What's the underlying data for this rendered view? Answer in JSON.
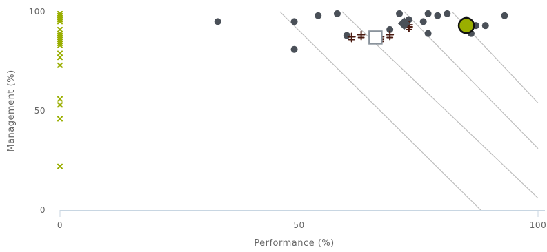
{
  "chart_data": {
    "type": "scatter",
    "xlabel": "Performance (%)",
    "ylabel": "Management (%)",
    "xlim": [
      0,
      100
    ],
    "ylim": [
      0,
      100
    ],
    "x_ticks": [
      0,
      50,
      100
    ],
    "y_ticks": [
      0,
      50,
      100
    ],
    "grid": false,
    "reference_lines": [
      {
        "from": [
          46,
          100
        ],
        "to": [
          88,
          0
        ]
      },
      {
        "from": [
          59,
          100
        ],
        "to": [
          100,
          6
        ]
      },
      {
        "from": [
          72,
          100
        ],
        "to": [
          100,
          31
        ]
      },
      {
        "from": [
          82,
          100
        ],
        "to": [
          100,
          54
        ]
      }
    ],
    "series": [
      {
        "marker": "circle",
        "color": "#4a5058",
        "points": [
          [
            33,
            95
          ],
          [
            49,
            95
          ],
          [
            49,
            81
          ],
          [
            54,
            98
          ],
          [
            58,
            99
          ],
          [
            60,
            88
          ],
          [
            69,
            91
          ],
          [
            71,
            99
          ],
          [
            73,
            96
          ],
          [
            76,
            95
          ],
          [
            77,
            99
          ],
          [
            77,
            89
          ],
          [
            79,
            98
          ],
          [
            81,
            99
          ],
          [
            85,
            96
          ],
          [
            86,
            89
          ],
          [
            87,
            93
          ],
          [
            89,
            93
          ],
          [
            93,
            98
          ]
        ]
      },
      {
        "marker": "x",
        "color": "#9aae00",
        "points": [
          [
            0,
            99
          ],
          [
            0,
            98
          ],
          [
            0,
            97
          ],
          [
            0,
            96
          ],
          [
            0,
            95
          ],
          [
            0,
            91
          ],
          [
            0,
            89
          ],
          [
            0,
            88
          ],
          [
            0,
            87
          ],
          [
            0,
            86
          ],
          [
            0,
            85
          ],
          [
            0,
            84
          ],
          [
            0,
            83
          ],
          [
            0,
            79
          ],
          [
            0,
            77
          ],
          [
            0,
            73
          ],
          [
            0,
            56
          ],
          [
            0,
            53
          ],
          [
            0,
            46
          ],
          [
            0,
            22
          ]
        ]
      },
      {
        "marker": "dagger",
        "color": "#4a1a10",
        "points": [
          [
            61,
            87
          ],
          [
            63,
            88
          ],
          [
            67,
            86
          ],
          [
            67,
            87
          ],
          [
            69,
            88
          ],
          [
            73,
            93
          ],
          [
            73,
            92
          ]
        ]
      },
      {
        "marker": "diamond",
        "color": "#4a5058",
        "points": [
          [
            72,
            94
          ]
        ]
      },
      {
        "marker": "square",
        "color": "#8a939c",
        "points": [
          [
            66,
            87
          ]
        ]
      },
      {
        "marker": "big-circle",
        "color": "#9aae00",
        "points": [
          [
            85,
            93
          ]
        ]
      }
    ]
  }
}
